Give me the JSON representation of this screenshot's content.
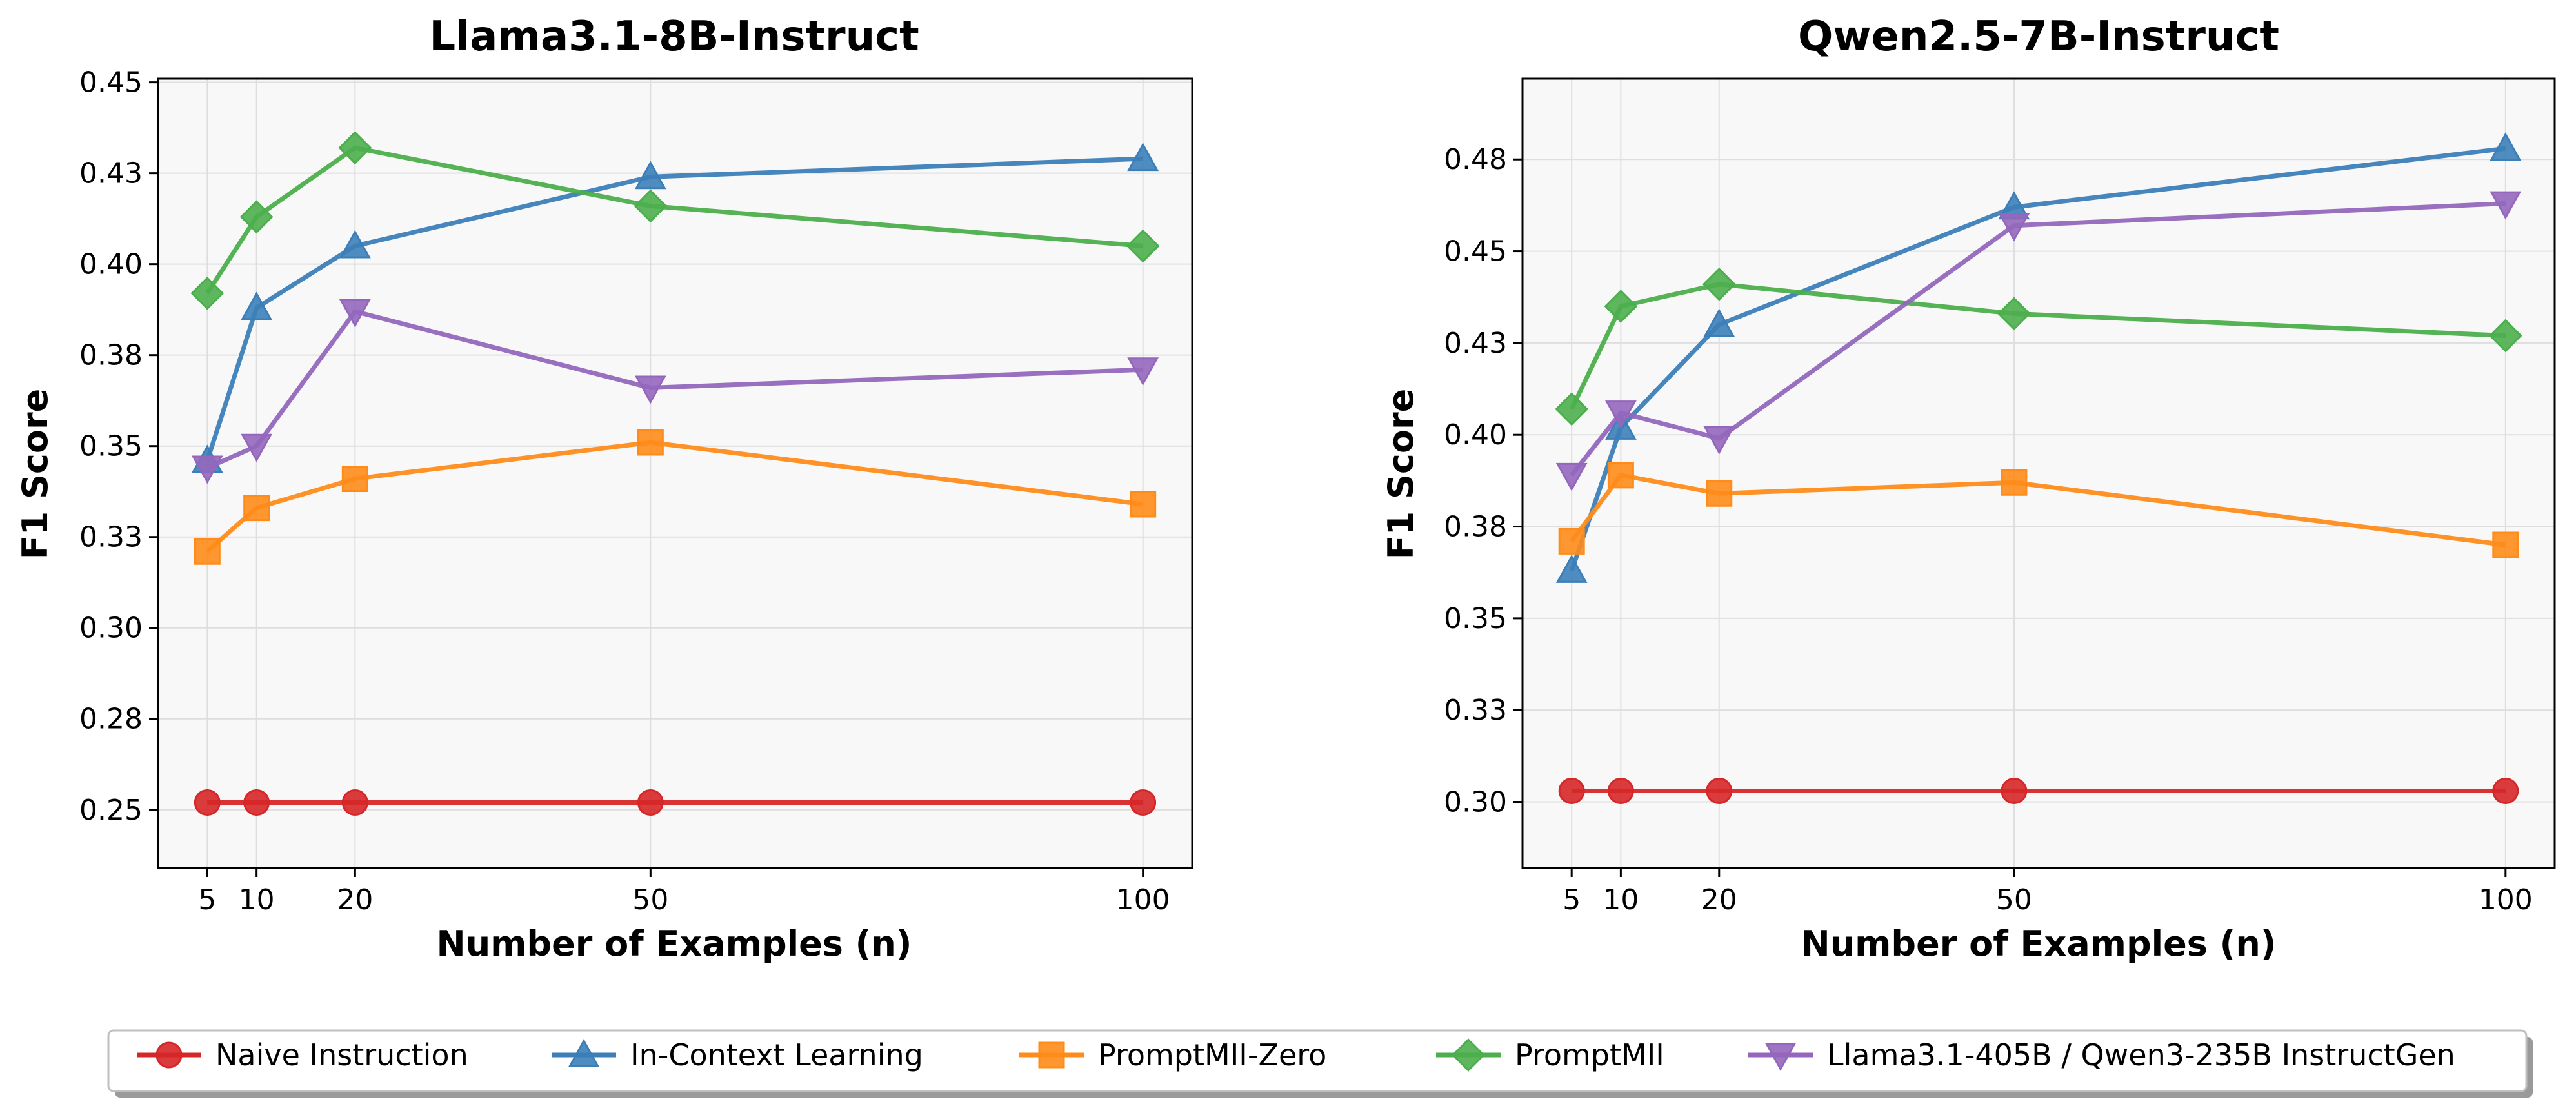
{
  "chart_data": [
    {
      "type": "line",
      "title": "Llama3.1-8B-Instruct",
      "xlabel": "Number of Examples (n)",
      "ylabel": "F1 Score",
      "x": [
        5,
        10,
        20,
        50,
        100
      ],
      "xticks": [
        5,
        10,
        20,
        50,
        100
      ],
      "xlim": [
        0,
        105
      ],
      "yticks": [
        0.25,
        0.275,
        0.3,
        0.325,
        0.35,
        0.375,
        0.4,
        0.425,
        0.45
      ],
      "ytick_labels": [
        "0.25",
        "0.28",
        "0.30",
        "0.33",
        "0.35",
        "0.38",
        "0.40",
        "0.43",
        "0.45"
      ],
      "ylim": [
        0.234,
        0.451
      ],
      "grid": true,
      "series": [
        {
          "name": "Naive Instruction",
          "values": [
            0.252,
            0.252,
            0.252,
            0.252,
            0.252
          ]
        },
        {
          "name": "In-Context Learning",
          "values": [
            0.346,
            0.388,
            0.405,
            0.424,
            0.429
          ]
        },
        {
          "name": "PromptMII-Zero",
          "values": [
            0.321,
            0.333,
            0.341,
            0.351,
            0.334
          ]
        },
        {
          "name": "PromptMII",
          "values": [
            0.392,
            0.413,
            0.432,
            0.416,
            0.405
          ]
        },
        {
          "name": "Llama3.1-405B / Qwen3-235B InstructGen",
          "values": [
            0.344,
            0.35,
            0.387,
            0.366,
            0.371
          ]
        }
      ]
    },
    {
      "type": "line",
      "title": "Qwen2.5-7B-Instruct",
      "xlabel": "Number of Examples (n)",
      "ylabel": "F1 Score",
      "x": [
        5,
        10,
        20,
        50,
        100
      ],
      "xticks": [
        5,
        10,
        20,
        50,
        100
      ],
      "xlim": [
        0,
        105
      ],
      "yticks": [
        0.3,
        0.325,
        0.35,
        0.375,
        0.4,
        0.425,
        0.45,
        0.475
      ],
      "ytick_labels": [
        "0.30",
        "0.33",
        "0.35",
        "0.38",
        "0.40",
        "0.43",
        "0.45",
        "0.48"
      ],
      "ylim": [
        0.282,
        0.497
      ],
      "grid": true,
      "series": [
        {
          "name": "Naive Instruction",
          "values": [
            0.303,
            0.303,
            0.303,
            0.303,
            0.303
          ]
        },
        {
          "name": "In-Context Learning",
          "values": [
            0.363,
            0.402,
            0.43,
            0.462,
            0.478
          ]
        },
        {
          "name": "PromptMII-Zero",
          "values": [
            0.371,
            0.389,
            0.384,
            0.387,
            0.37
          ]
        },
        {
          "name": "PromptMII",
          "values": [
            0.407,
            0.435,
            0.441,
            0.433,
            0.427
          ]
        },
        {
          "name": "Llama3.1-405B / Qwen3-235B InstructGen",
          "values": [
            0.389,
            0.406,
            0.399,
            0.457,
            0.463
          ]
        }
      ]
    }
  ],
  "legend": {
    "position": "bottom-center",
    "entries": [
      {
        "label": "Naive Instruction",
        "color": "#d62728",
        "marker": "circle"
      },
      {
        "label": "In-Context Learning",
        "color": "#3c7fb8",
        "marker": "triangle-up"
      },
      {
        "label": "PromptMII-Zero",
        "color": "#ff8c1a",
        "marker": "square"
      },
      {
        "label": "PromptMII",
        "color": "#4cae4c",
        "marker": "diamond"
      },
      {
        "label": "Llama3.1-405B / Qwen3-235B InstructGen",
        "color": "#9467bd",
        "marker": "triangle-down"
      }
    ]
  }
}
